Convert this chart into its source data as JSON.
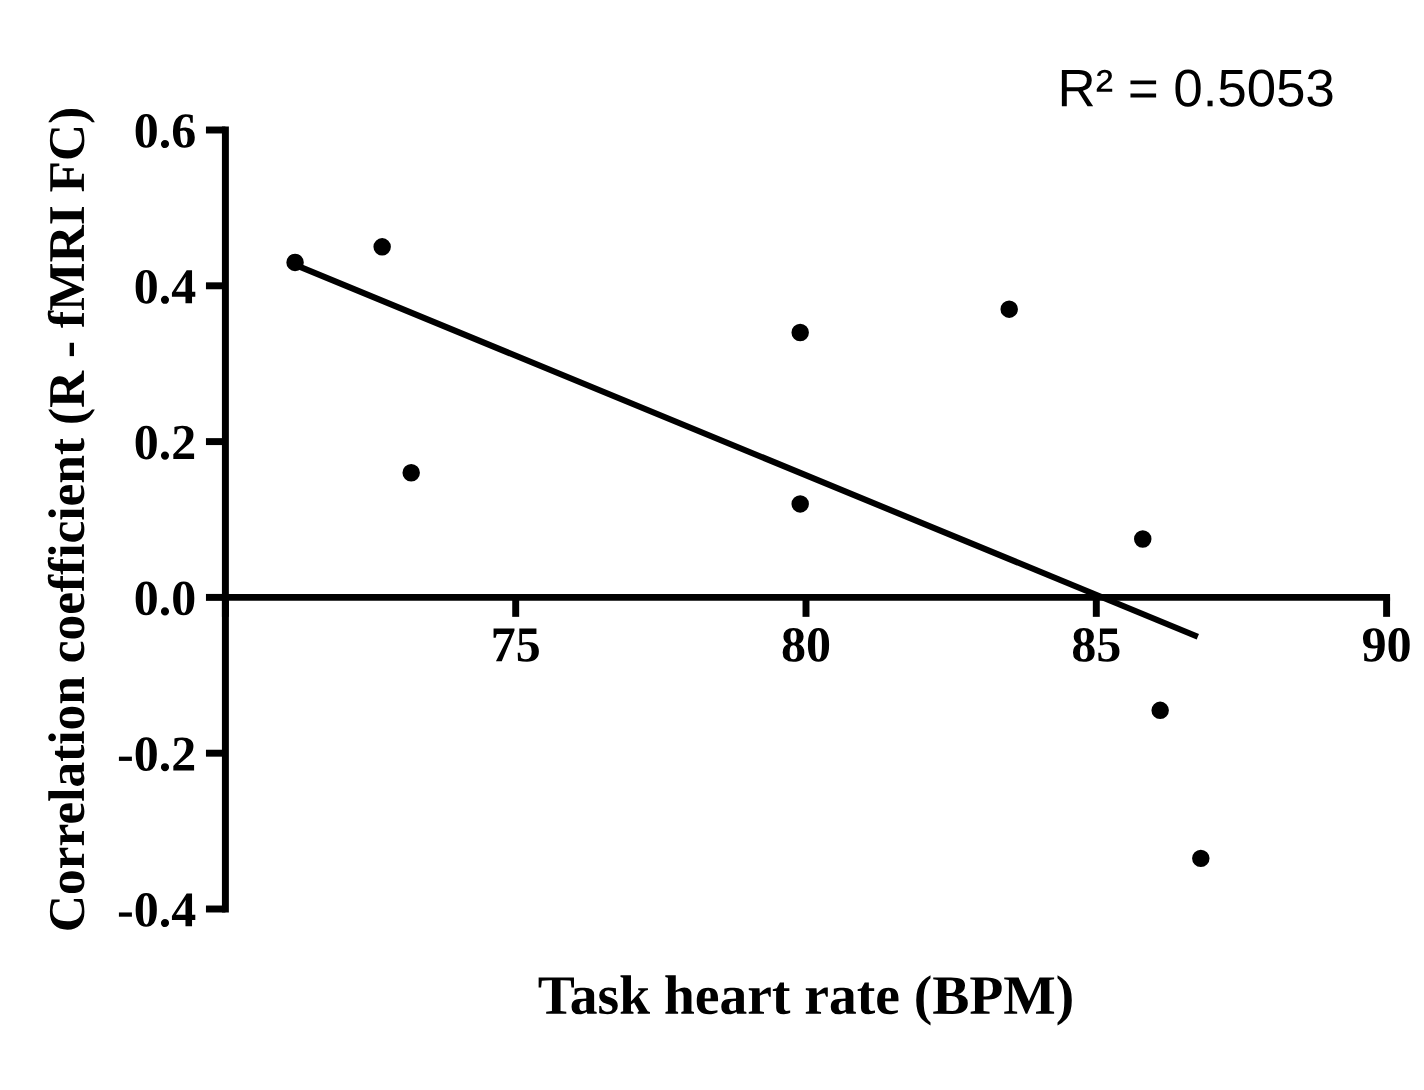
{
  "chart_data": {
    "type": "scatter",
    "xlabel": "Task heart rate (BPM)",
    "ylabel": "Correlation coefficient (R - fMRI FC)",
    "annotations": [
      "R² = 0.5053"
    ],
    "xlim": [
      70,
      90
    ],
    "xticks": [
      {
        "value": 70,
        "label": null
      },
      75,
      80,
      85,
      90
    ],
    "ylim": [
      -0.4,
      0.6
    ],
    "yticks": [
      -0.4,
      -0.2,
      {
        "value": 0,
        "label": "0.0"
      },
      0.2,
      0.4,
      0.6
    ],
    "grid": false,
    "legend": false,
    "marker": "circle",
    "series": [
      {
        "color": "#000000",
        "x": [
          71.2,
          72.7,
          73.2,
          79.9,
          79.9,
          83.5,
          85.8,
          86.1,
          86.8
        ],
        "values": [
          0.43,
          0.45,
          0.16,
          0.34,
          0.12,
          0.37,
          0.075,
          -0.145,
          -0.335
        ]
      },
      {
        "type": "line",
        "color": "#000000",
        "line_style": "solid",
        "marker": "none",
        "x": [
          71.2,
          86.7
        ],
        "values": [
          0.427,
          -0.049
        ]
      }
    ]
  }
}
